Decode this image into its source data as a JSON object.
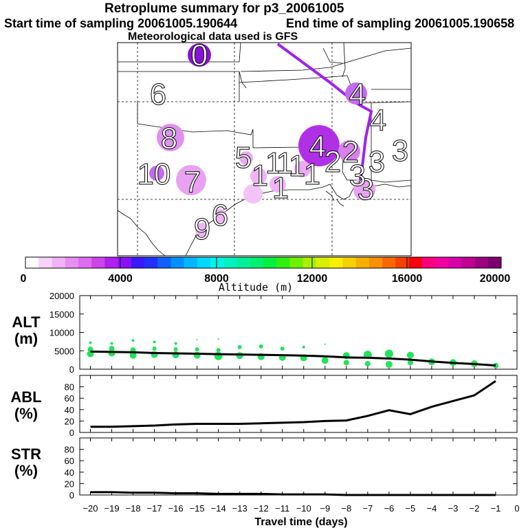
{
  "header": {
    "title": "Retroplume summary for p3_20061005",
    "start_time": "Start time of sampling 20061005.190644",
    "end_time": "End time of sampling 20061005.190658",
    "met_data": "Meteorological data used is GFS"
  },
  "colors": {
    "plume_light": "#e9a2f2",
    "plume_mid": "#c46af0",
    "plume_dark": "#8a12d6",
    "trajectory": "#a020f0",
    "green": "#22e35a"
  },
  "map_labels": [
    {
      "label": "0"
    },
    {
      "label": "6"
    },
    {
      "label": "8"
    },
    {
      "label": "10"
    },
    {
      "label": "7"
    },
    {
      "label": "5"
    },
    {
      "label": "4"
    },
    {
      "label": "4"
    },
    {
      "label": "4"
    },
    {
      "label": "3"
    },
    {
      "label": "3"
    },
    {
      "label": "3"
    },
    {
      "label": "2"
    },
    {
      "label": "1"
    },
    {
      "label": "1"
    },
    {
      "label": "1"
    },
    {
      "label": "1"
    },
    {
      "label": "1"
    },
    {
      "label": "1"
    },
    {
      "label": "9"
    },
    {
      "label": "6"
    },
    {
      "label": "3"
    },
    {
      "label": "2"
    }
  ],
  "colorbar": {
    "ticks": [
      "0",
      "4000",
      "8000",
      "12000",
      "16000",
      "20000"
    ],
    "label": "Altitude (m)",
    "colors": [
      "#ffffff",
      "#f7d3fb",
      "#f0b4f6",
      "#e890f2",
      "#de6cee",
      "#cc44ea",
      "#b020ee",
      "#8a10f6",
      "#3a18ff",
      "#2030ff",
      "#1060ff",
      "#0090ff",
      "#00b8ff",
      "#00d8ff",
      "#00f4e8",
      "#00f0c0",
      "#00f098",
      "#00f070",
      "#00f040",
      "#30f010",
      "#70f000",
      "#a8f000",
      "#d8f000",
      "#f8f000",
      "#f8d000",
      "#f8b000",
      "#f89000",
      "#f86800",
      "#f84000",
      "#f80010",
      "#f8007c",
      "#f000a0",
      "#d800a8",
      "#c00090",
      "#9c0080",
      "#7c0070"
    ]
  },
  "chart_data": [
    {
      "type": "scatter",
      "ylabel": "ALT\n(m)",
      "yticks": [
        "0",
        "5000",
        "10000",
        "15000",
        "20000"
      ],
      "ylim": [
        0,
        20000
      ],
      "xlim": [
        -20,
        0
      ],
      "line": {
        "x": [
          -20,
          -19,
          -18,
          -17,
          -16,
          -15,
          -14,
          -13,
          -12,
          -11,
          -10,
          -9,
          -8,
          -7,
          -6,
          -5,
          -4,
          -3,
          -2,
          -1
        ],
        "y": [
          4800,
          4700,
          4600,
          4400,
          4300,
          4200,
          4100,
          4000,
          3900,
          3800,
          3700,
          3500,
          3200,
          3100,
          2900,
          2600,
          2100,
          1700,
          1400,
          1000
        ]
      },
      "points": [
        {
          "x": -20,
          "y": 4200,
          "r": 5
        },
        {
          "x": -20,
          "y": 5400,
          "r": 4
        },
        {
          "x": -20,
          "y": 7200,
          "r": 2
        },
        {
          "x": -19,
          "y": 4400,
          "r": 5
        },
        {
          "x": -19,
          "y": 5600,
          "r": 4
        },
        {
          "x": -19,
          "y": 7000,
          "r": 2
        },
        {
          "x": -18,
          "y": 3800,
          "r": 5
        },
        {
          "x": -18,
          "y": 5200,
          "r": 4
        },
        {
          "x": -18,
          "y": 7800,
          "r": 2
        },
        {
          "x": -17,
          "y": 4000,
          "r": 5
        },
        {
          "x": -17,
          "y": 5600,
          "r": 3
        },
        {
          "x": -17,
          "y": 7400,
          "r": 2
        },
        {
          "x": -16,
          "y": 3900,
          "r": 5
        },
        {
          "x": -16,
          "y": 5400,
          "r": 3
        },
        {
          "x": -16,
          "y": 7000,
          "r": 2
        },
        {
          "x": -15,
          "y": 3800,
          "r": 5
        },
        {
          "x": -15,
          "y": 5400,
          "r": 3
        },
        {
          "x": -15,
          "y": 8000,
          "r": 1
        },
        {
          "x": -14,
          "y": 3600,
          "r": 6
        },
        {
          "x": -14,
          "y": 5200,
          "r": 3
        },
        {
          "x": -14,
          "y": 8200,
          "r": 1
        },
        {
          "x": -13,
          "y": 3700,
          "r": 5
        },
        {
          "x": -13,
          "y": 6000,
          "r": 3
        },
        {
          "x": -12,
          "y": 3400,
          "r": 5
        },
        {
          "x": -12,
          "y": 6200,
          "r": 3
        },
        {
          "x": -11,
          "y": 3200,
          "r": 5
        },
        {
          "x": -11,
          "y": 5600,
          "r": 3
        },
        {
          "x": -10,
          "y": 3100,
          "r": 5
        },
        {
          "x": -10,
          "y": 6000,
          "r": 2
        },
        {
          "x": -9,
          "y": 2400,
          "r": 5
        },
        {
          "x": -9,
          "y": 6800,
          "r": 1
        },
        {
          "x": -8,
          "y": 1800,
          "r": 4
        },
        {
          "x": -8,
          "y": 3700,
          "r": 5
        },
        {
          "x": -7,
          "y": 1500,
          "r": 4
        },
        {
          "x": -7,
          "y": 3900,
          "r": 6
        },
        {
          "x": -6,
          "y": 1300,
          "r": 5
        },
        {
          "x": -6,
          "y": 4200,
          "r": 6
        },
        {
          "x": -5,
          "y": 1800,
          "r": 4
        },
        {
          "x": -5,
          "y": 3800,
          "r": 5
        },
        {
          "x": -4,
          "y": 2000,
          "r": 5
        },
        {
          "x": -3,
          "y": 1800,
          "r": 5
        },
        {
          "x": -2,
          "y": 1500,
          "r": 5
        },
        {
          "x": -1,
          "y": 1000,
          "r": 4
        }
      ]
    },
    {
      "type": "line",
      "ylabel": "ABL\n(%)",
      "yticks": [
        "0",
        "20",
        "40",
        "60",
        "80"
      ],
      "ylim": [
        0,
        100
      ],
      "xlim": [
        -20,
        0
      ],
      "x": [
        -20,
        -19,
        -18,
        -17,
        -16,
        -15,
        -14,
        -13,
        -12,
        -11,
        -10,
        -9,
        -8,
        -7,
        -6,
        -5,
        -4,
        -3,
        -2,
        -1
      ],
      "y": [
        10,
        10,
        11,
        12,
        14,
        15,
        15,
        15,
        16,
        17,
        18,
        20,
        21,
        29,
        39,
        32,
        45,
        55,
        65,
        90
      ]
    },
    {
      "type": "line",
      "ylabel": "STR\n(%)",
      "yticks": [
        "0",
        "20",
        "40",
        "60",
        "80"
      ],
      "ylim": [
        0,
        100
      ],
      "xlim": [
        -20,
        0
      ],
      "x": [
        -20,
        -19,
        -18,
        -17,
        -16,
        -15,
        -14,
        -13,
        -12,
        -11,
        -10,
        -9,
        -8,
        -7,
        -6,
        -5,
        -4,
        -3,
        -2,
        -1
      ],
      "y": [
        5,
        5,
        4,
        4,
        3,
        3,
        2,
        2,
        2,
        1,
        1,
        1,
        0,
        0,
        0,
        0,
        0,
        0,
        0,
        0
      ],
      "xticks": [
        "−20",
        "−19",
        "−18",
        "−17",
        "−16",
        "−15",
        "−14",
        "−13",
        "−12",
        "−11",
        "−10",
        "−9",
        "−8",
        "−7",
        "−6",
        "−5",
        "−4",
        "−3",
        "−2",
        "−1",
        "0"
      ],
      "xlabel": "Travel time (days)"
    }
  ]
}
